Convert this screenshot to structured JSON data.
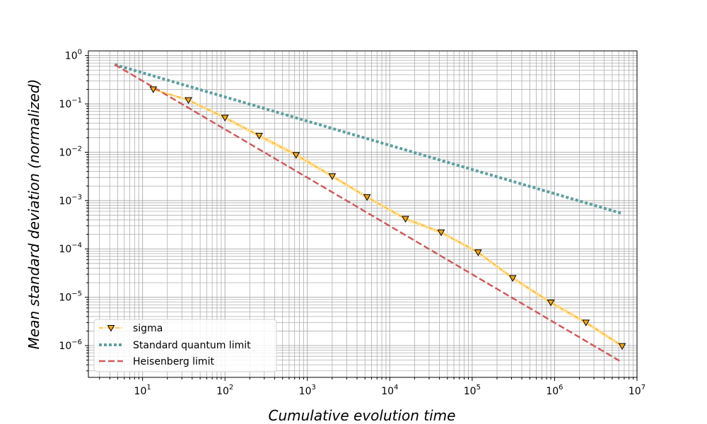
{
  "chart_data": {
    "type": "line",
    "xlabel": "Cumulative evolution time",
    "ylabel": "Mean standard deviation (normalized)",
    "x_scale": "log",
    "y_scale": "log",
    "xlim": [
      2.2,
      10000000
    ],
    "ylim": [
      2.2e-07,
      1.25
    ],
    "x_ticks": [
      {
        "base": "10",
        "exp": "1",
        "value": 10
      },
      {
        "base": "10",
        "exp": "2",
        "value": 100
      },
      {
        "base": "10",
        "exp": "3",
        "value": 1000
      },
      {
        "base": "10",
        "exp": "4",
        "value": 10000
      },
      {
        "base": "10",
        "exp": "5",
        "value": 100000
      },
      {
        "base": "10",
        "exp": "6",
        "value": 1000000
      },
      {
        "base": "10",
        "exp": "7",
        "value": 10000000
      }
    ],
    "y_ticks": [
      {
        "base": "10",
        "exp": "0",
        "value": 1
      },
      {
        "base": "10",
        "exp": "−1",
        "value": 0.1
      },
      {
        "base": "10",
        "exp": "−2",
        "value": 0.01
      },
      {
        "base": "10",
        "exp": "−3",
        "value": 0.001
      },
      {
        "base": "10",
        "exp": "−4",
        "value": 0.0001
      },
      {
        "base": "10",
        "exp": "−5",
        "value": 1e-05
      },
      {
        "base": "10",
        "exp": "−6",
        "value": 1e-06
      }
    ],
    "grid": true,
    "legend_position": "lower-left",
    "series": [
      {
        "name": "sigma",
        "style": "dashdot-triangle",
        "color": "#FFA500",
        "band_color": "#FFE4A3",
        "marker_fill": "#F5A623",
        "x": [
          13.5,
          36,
          100,
          260,
          730,
          2000,
          5300,
          15500,
          42000,
          118000,
          310000,
          900000,
          2400000,
          6600000
        ],
        "y": [
          0.2,
          0.12,
          0.052,
          0.022,
          0.0088,
          0.0032,
          0.00118,
          0.00042,
          0.00022,
          8.5e-05,
          2.5e-05,
          7.8e-06,
          3e-06,
          9.8e-07
        ],
        "band_lower": [
          0.19,
          0.112,
          0.047,
          0.0197,
          0.0078,
          0.0029,
          0.00107,
          0.00038,
          0.0002,
          7.75e-05,
          2.25e-05,
          7e-06,
          2.7e-06,
          8.8e-07
        ],
        "band_upper": [
          0.21,
          0.128,
          0.057,
          0.0243,
          0.0098,
          0.0035,
          0.00129,
          0.00046,
          0.00024,
          9.25e-05,
          2.75e-05,
          8.6e-06,
          3.3e-06,
          1.08e-06
        ]
      },
      {
        "name": "Standard quantum limit",
        "style": "dotted",
        "color": "#5F9EA0",
        "x": [
          4.6,
          6600000
        ],
        "y": [
          0.65,
          0.00054
        ]
      },
      {
        "name": "Heisenberg limit",
        "style": "dashed",
        "color": "#CD5C5C",
        "x": [
          4.6,
          6600000
        ],
        "y": [
          0.65,
          4.5e-07
        ]
      }
    ]
  }
}
